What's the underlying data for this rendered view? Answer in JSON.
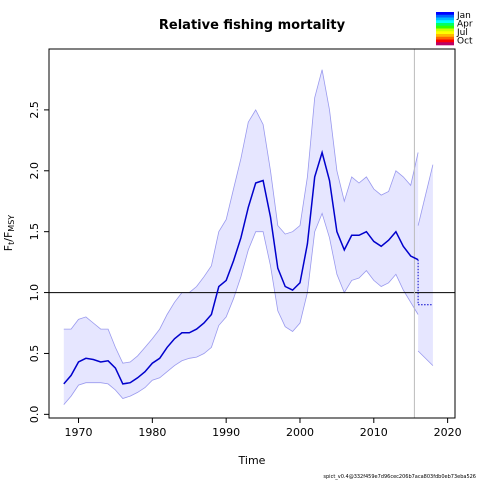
{
  "chart_data": {
    "type": "line",
    "title": "Relative fishing mortality",
    "xlabel": "Time",
    "ylabel_main": "F",
    "ylabel_sub1": "t",
    "ylabel_slash": "/F",
    "ylabel_sub2": "MSY",
    "xlim": [
      1966,
      2021
    ],
    "ylim": [
      -0.03,
      3.0
    ],
    "x_ticks": [
      1970,
      1980,
      1990,
      2000,
      2010,
      2020
    ],
    "y_ticks": [
      0.0,
      0.5,
      1.0,
      1.5,
      2.0,
      2.5
    ],
    "y_tick_labels": [
      "0.0",
      "0.5",
      "1.0",
      "1.5",
      "2.0",
      "2.5"
    ],
    "reference_line_y": 1.0,
    "vertical_line_x": 2015.5,
    "colors": {
      "estimate": "#0000cc",
      "band_fill": "#e6e6ff",
      "band_edge": "#9999ee",
      "reference": "#000000",
      "vertical": "#bbbbbb"
    },
    "series": [
      {
        "role": "estimate",
        "x": [
          1968,
          1969,
          1970,
          1971,
          1972,
          1973,
          1974,
          1975,
          1976,
          1977,
          1978,
          1979,
          1980,
          1981,
          1982,
          1983,
          1984,
          1985,
          1986,
          1987,
          1988,
          1989,
          1990,
          1991,
          1992,
          1993,
          1994,
          1995,
          1996,
          1997,
          1998,
          1999,
          2000,
          2001,
          2002,
          2003,
          2004,
          2005,
          2006,
          2007,
          2008,
          2009,
          2010,
          2011,
          2012,
          2013,
          2014,
          2015,
          2016
        ],
        "y": [
          0.25,
          0.32,
          0.43,
          0.46,
          0.45,
          0.43,
          0.44,
          0.38,
          0.25,
          0.26,
          0.3,
          0.35,
          0.42,
          0.46,
          0.55,
          0.62,
          0.67,
          0.67,
          0.7,
          0.75,
          0.82,
          1.05,
          1.1,
          1.26,
          1.45,
          1.7,
          1.9,
          1.92,
          1.62,
          1.2,
          1.05,
          1.02,
          1.08,
          1.4,
          1.95,
          2.15,
          1.92,
          1.5,
          1.35,
          1.47,
          1.47,
          1.5,
          1.42,
          1.38,
          1.43,
          1.5,
          1.38,
          1.3,
          1.27
        ]
      },
      {
        "role": "ci_upper",
        "x": [
          1968,
          1969,
          1970,
          1971,
          1972,
          1973,
          1974,
          1975,
          1976,
          1977,
          1978,
          1979,
          1980,
          1981,
          1982,
          1983,
          1984,
          1985,
          1986,
          1987,
          1988,
          1989,
          1990,
          1991,
          1992,
          1993,
          1994,
          1995,
          1996,
          1997,
          1998,
          1999,
          2000,
          2001,
          2002,
          2003,
          2004,
          2005,
          2006,
          2007,
          2008,
          2009,
          2010,
          2011,
          2012,
          2013,
          2014,
          2015,
          2016
        ],
        "y": [
          0.7,
          0.7,
          0.78,
          0.8,
          0.75,
          0.7,
          0.7,
          0.55,
          0.42,
          0.43,
          0.48,
          0.55,
          0.62,
          0.7,
          0.82,
          0.92,
          1.0,
          1.0,
          1.05,
          1.13,
          1.22,
          1.5,
          1.6,
          1.85,
          2.1,
          2.4,
          2.5,
          2.38,
          2.0,
          1.55,
          1.48,
          1.5,
          1.55,
          1.95,
          2.6,
          2.83,
          2.5,
          2.0,
          1.75,
          1.95,
          1.9,
          1.95,
          1.85,
          1.8,
          1.83,
          2.0,
          1.95,
          1.88,
          2.15
        ]
      },
      {
        "role": "ci_lower",
        "x": [
          1968,
          1969,
          1970,
          1971,
          1972,
          1973,
          1974,
          1975,
          1976,
          1977,
          1978,
          1979,
          1980,
          1981,
          1982,
          1983,
          1984,
          1985,
          1986,
          1987,
          1988,
          1989,
          1990,
          1991,
          1992,
          1993,
          1994,
          1995,
          1996,
          1997,
          1998,
          1999,
          2000,
          2001,
          2002,
          2003,
          2004,
          2005,
          2006,
          2007,
          2008,
          2009,
          2010,
          2011,
          2012,
          2013,
          2014,
          2015,
          2016
        ],
        "y": [
          0.08,
          0.15,
          0.24,
          0.26,
          0.26,
          0.26,
          0.25,
          0.2,
          0.13,
          0.15,
          0.18,
          0.22,
          0.28,
          0.3,
          0.35,
          0.4,
          0.44,
          0.46,
          0.47,
          0.5,
          0.55,
          0.73,
          0.8,
          0.95,
          1.13,
          1.35,
          1.5,
          1.5,
          1.22,
          0.85,
          0.72,
          0.68,
          0.75,
          1.0,
          1.5,
          1.65,
          1.45,
          1.15,
          1.0,
          1.1,
          1.12,
          1.18,
          1.1,
          1.05,
          1.08,
          1.15,
          1.02,
          0.92,
          0.82
        ]
      }
    ],
    "forecast": {
      "estimate": {
        "x": [
          2016,
          2016,
          2018
        ],
        "y": [
          1.27,
          0.9,
          0.9
        ]
      },
      "ci_upper": {
        "x": [
          2016,
          2018
        ],
        "y": [
          1.55,
          2.05
        ]
      },
      "ci_lower": {
        "x": [
          2016,
          2018
        ],
        "y": [
          0.52,
          0.4
        ]
      }
    },
    "legend": {
      "labels": [
        "Jan",
        "Apr",
        "Jul",
        "Oct"
      ],
      "colors": [
        "#0000ff",
        "#0066ff",
        "#00bbff",
        "#00ffff",
        "#00ff66",
        "#33ff00",
        "#ccff00",
        "#ffff00",
        "#ffbb00",
        "#ff6600",
        "#ff0000",
        "#bb0066"
      ]
    },
    "footer": "spict_v0.4@332f459e7d96cec206b7aca803fdb0eb73eba526"
  }
}
